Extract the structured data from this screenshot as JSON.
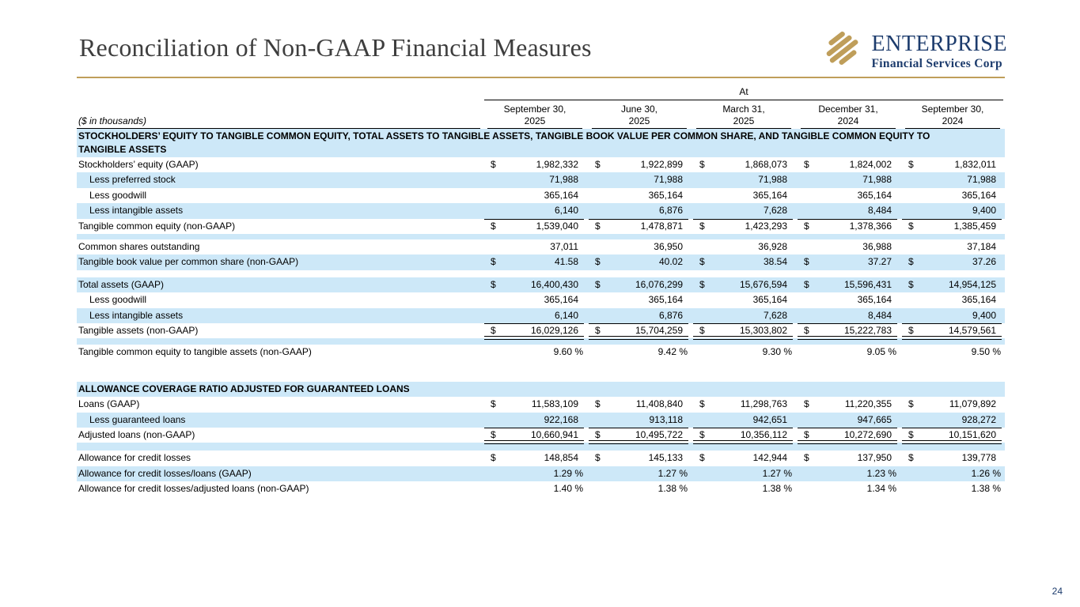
{
  "page": {
    "number": "24"
  },
  "header": {
    "title": "Reconciliation of Non-GAAP Financial Measures",
    "logo_name": "ENTERPRISE",
    "logo_subtitle": "Financial Services Corp"
  },
  "colors": {
    "accent_gold": "#bf9e5a",
    "brand_navy": "#1d3c6d",
    "row_highlight_blue": "#cde8f8"
  },
  "table": {
    "unit_note": "($ in thousands)",
    "period_label": "At",
    "currency_symbol": "$",
    "columns": [
      {
        "line1": "September 30,",
        "line2": "2025"
      },
      {
        "line1": "June 30,",
        "line2": "2025"
      },
      {
        "line1": "March 31,",
        "line2": "2025"
      },
      {
        "line1": "December 31,",
        "line2": "2024"
      },
      {
        "line1": "September 30,",
        "line2": "2024"
      }
    ],
    "rows": [
      {
        "type": "section",
        "label": "STOCKHOLDERS’ EQUITY TO TANGIBLE COMMON EQUITY, TOTAL ASSETS TO TANGIBLE ASSETS, TANGIBLE BOOK VALUE PER COMMON SHARE, AND TANGIBLE COMMON EQUITY TO TANGIBLE ASSETS"
      },
      {
        "type": "data",
        "label": "Stockholders’ equity (GAAP)",
        "dollar": true,
        "values": [
          "1,982,332",
          "1,922,899",
          "1,868,073",
          "1,824,002",
          "1,832,011"
        ]
      },
      {
        "type": "data",
        "label": "Less preferred stock",
        "indent": true,
        "shade": "blue",
        "values": [
          "71,988",
          "71,988",
          "71,988",
          "71,988",
          "71,988"
        ]
      },
      {
        "type": "data",
        "label": "Less goodwill",
        "indent": true,
        "values": [
          "365,164",
          "365,164",
          "365,164",
          "365,164",
          "365,164"
        ]
      },
      {
        "type": "data",
        "label": "Less intangible assets",
        "indent": true,
        "shade": "blue",
        "rule": "single",
        "values": [
          "6,140",
          "6,876",
          "7,628",
          "8,484",
          "9,400"
        ]
      },
      {
        "type": "data",
        "label": "Tangible common equity (non-GAAP)",
        "dollar": true,
        "values": [
          "1,539,040",
          "1,478,871",
          "1,423,293",
          "1,378,366",
          "1,385,459"
        ]
      },
      {
        "type": "spacer",
        "shade": "blue",
        "h": 7
      },
      {
        "type": "data",
        "label": "Common shares outstanding",
        "values": [
          "37,011",
          "36,950",
          "36,928",
          "36,988",
          "37,184"
        ]
      },
      {
        "type": "data",
        "label": "Tangible book value per common share (non-GAAP)",
        "dollar": true,
        "shade": "blue",
        "values": [
          "41.58",
          "40.02",
          "38.54",
          "37.27",
          "37.26"
        ]
      },
      {
        "type": "spacer",
        "h": 9
      },
      {
        "type": "data",
        "label": "Total assets (GAAP)",
        "dollar": true,
        "shade": "blue",
        "values": [
          "16,400,430",
          "16,076,299",
          "15,676,594",
          "15,596,431",
          "14,954,125"
        ]
      },
      {
        "type": "data",
        "label": "Less goodwill",
        "indent": true,
        "values": [
          "365,164",
          "365,164",
          "365,164",
          "365,164",
          "365,164"
        ]
      },
      {
        "type": "data",
        "label": "Less intangible assets",
        "indent": true,
        "shade": "blue",
        "rule": "single",
        "values": [
          "6,140",
          "6,876",
          "7,628",
          "8,484",
          "9,400"
        ]
      },
      {
        "type": "data",
        "label": "Tangible assets (non-GAAP)",
        "dollar": true,
        "rule": "double",
        "values": [
          "16,029,126",
          "15,704,259",
          "15,303,802",
          "15,222,783",
          "14,579,561"
        ]
      },
      {
        "type": "spacer",
        "shade": "blue",
        "h": 8
      },
      {
        "type": "data",
        "label": "Tangible common equity to tangible assets (non-GAAP)",
        "values": [
          "9.60 %",
          "9.42 %",
          "9.30 %",
          "9.05 %",
          "9.50 %"
        ]
      },
      {
        "type": "spacer",
        "h": 27
      },
      {
        "type": "section",
        "label": "ALLOWANCE COVERAGE RATIO ADJUSTED FOR GUARANTEED LOANS"
      },
      {
        "type": "data",
        "label": "Loans (GAAP)",
        "dollar": true,
        "values": [
          "11,583,109",
          "11,408,840",
          "11,298,763",
          "11,220,355",
          "11,079,892"
        ]
      },
      {
        "type": "data",
        "label": "Less guaranteed loans",
        "indent": true,
        "shade": "blue",
        "rule": "single",
        "values": [
          "922,168",
          "913,118",
          "942,651",
          "947,665",
          "928,272"
        ]
      },
      {
        "type": "data",
        "label": "Adjusted loans (non-GAAP)",
        "dollar": true,
        "rule": "double",
        "values": [
          "10,660,941",
          "10,495,722",
          "10,356,112",
          "10,272,690",
          "10,151,620"
        ]
      },
      {
        "type": "spacer",
        "shade": "blue",
        "h": 10
      },
      {
        "type": "data",
        "label": "Allowance for credit losses",
        "dollar": true,
        "values": [
          "148,854",
          "145,133",
          "142,944",
          "137,950",
          "139,778"
        ]
      },
      {
        "type": "data",
        "label": "Allowance for credit losses/loans (GAAP)",
        "shade": "blue",
        "values": [
          "1.29 %",
          "1.27 %",
          "1.27 %",
          "1.23 %",
          "1.26 %"
        ]
      },
      {
        "type": "data",
        "label": "Allowance for credit losses/adjusted loans (non-GAAP)",
        "values": [
          "1.40 %",
          "1.38 %",
          "1.38 %",
          "1.34 %",
          "1.38 %"
        ]
      }
    ]
  }
}
